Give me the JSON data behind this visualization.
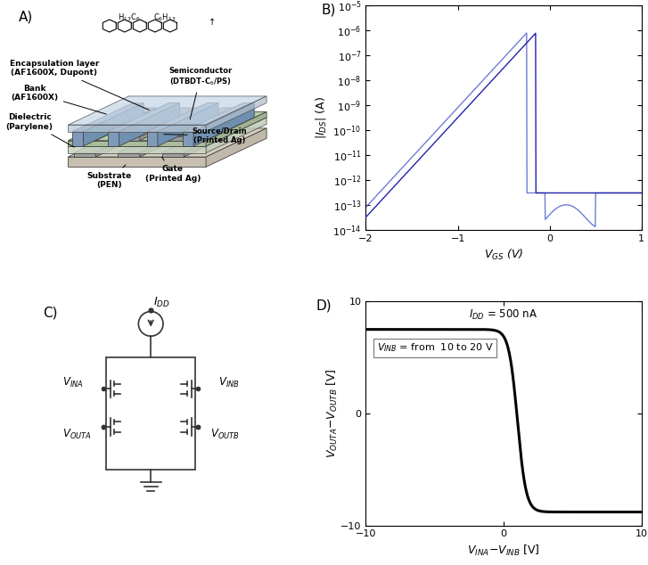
{
  "panel_label_fontsize": 11,
  "B_xlabel": "$V_{GS}$ (V)",
  "B_ylabel": "$|I_{DS}|$ (A)",
  "B_xlim": [
    -2,
    1
  ],
  "B_ylim_log": [
    -14,
    -5
  ],
  "B_line_color": "#2222aa",
  "B_line_color2": "#5566cc",
  "D_xlabel": "$V_{INA}$$-$$V_{INB}$ [V]",
  "D_ylabel": "$V_{OUTA}$$-$$V_{OUTB}$ [V]",
  "D_xlim": [
    -10,
    10
  ],
  "D_ylim": [
    -10,
    10
  ],
  "D_line_color": "#000000",
  "D_annotation1": "$I_{DD}$ = 500 nA",
  "D_annotation2": "$V_{INB}$ = from  10 to 20 V",
  "background_color": "#ffffff"
}
